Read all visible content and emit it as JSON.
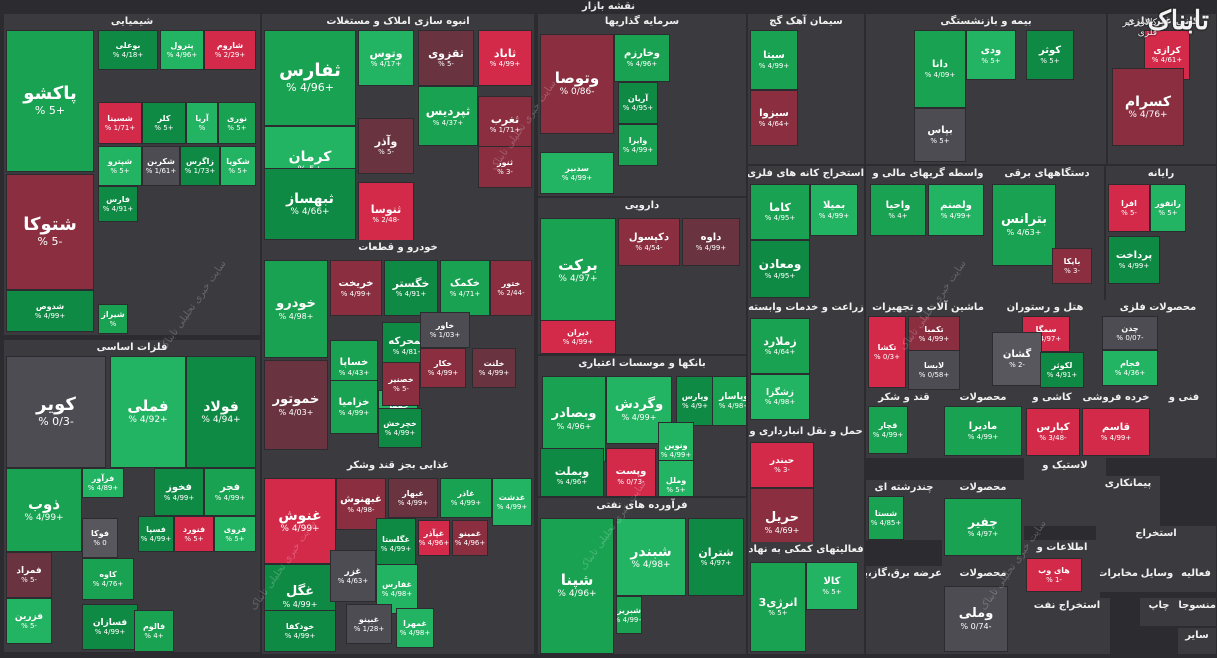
{
  "map_title": "نقشه بازار",
  "logo": {
    "main": "تابناک",
    "sub": "کالای غیر فلزی"
  },
  "watermark": "سایت خبری تحلیلی تابناک",
  "colors": {
    "up_strong": "#18a251",
    "up_light": "#23b463",
    "down_strong": "#d42a4a",
    "down_dark": "#8a2e40",
    "neutral": "#4c4c52"
  },
  "chart_data": {
    "type": "heatmap",
    "title": "نقشه بازار",
    "unit": "%",
    "sectors": [
      {
        "name": "شیمیایی",
        "tiles": [
          {
            "symbol": "پاکشو",
            "change": "+5 %",
            "dir": "up"
          },
          {
            "symbol": "شتوکا",
            "change": "-5 %",
            "dir": "down"
          },
          {
            "symbol": "شدوص",
            "change": "+4/99 %",
            "dir": "up"
          },
          {
            "symbol": "شاروم",
            "change": "+2/29 %",
            "dir": "down"
          },
          {
            "symbol": "پترول",
            "change": "+4/96 %",
            "dir": "up"
          },
          {
            "symbol": "بوعلی",
            "change": "+4/18 %",
            "dir": "up"
          },
          {
            "symbol": "نوری",
            "change": "+5 %",
            "dir": "up"
          },
          {
            "symbol": "آریا",
            "change": "%",
            "dir": "up"
          },
          {
            "symbol": "کلر",
            "change": "+5 %",
            "dir": "up"
          },
          {
            "symbol": "شسینا",
            "change": "+1/71 %",
            "dir": "down"
          },
          {
            "symbol": "شکویا",
            "change": "+5 %",
            "dir": "up"
          },
          {
            "symbol": "زاگرس",
            "change": "+1/73 %",
            "dir": "up"
          },
          {
            "symbol": "شکربن",
            "change": "+1/61 %",
            "dir": "n"
          },
          {
            "symbol": "شپترو",
            "change": "+5 %",
            "dir": "up"
          },
          {
            "symbol": "فارس",
            "change": "+4/91 %",
            "dir": "up"
          },
          {
            "symbol": "شیراز",
            "change": "%",
            "dir": "up"
          }
        ]
      },
      {
        "name": "فلزات اساسی",
        "tiles": [
          {
            "symbol": "کویر",
            "change": "-0/3 %",
            "dir": "n"
          },
          {
            "symbol": "فملی",
            "change": "+4/92 %",
            "dir": "up"
          },
          {
            "symbol": "فولاد",
            "change": "+4/94 %",
            "dir": "up"
          },
          {
            "symbol": "ذوب",
            "change": "+4/99 %",
            "dir": "up"
          },
          {
            "symbol": "فرآور",
            "change": "+4/89 %",
            "dir": "up"
          },
          {
            "symbol": "فخوز",
            "change": "+4/99 %",
            "dir": "up"
          },
          {
            "symbol": "فجر",
            "change": "+4/99 %",
            "dir": "up"
          },
          {
            "symbol": "فوکا",
            "change": "0 %",
            "dir": "n"
          },
          {
            "symbol": "فسپا",
            "change": "+4/99 %",
            "dir": "up"
          },
          {
            "symbol": "فنورد",
            "change": "+5 %",
            "dir": "down"
          },
          {
            "symbol": "فروی",
            "change": "+5 %",
            "dir": "up"
          },
          {
            "symbol": "فمراد",
            "change": "-5 %",
            "dir": "down"
          },
          {
            "symbol": "کاوه",
            "change": "+4/76 %",
            "dir": "up"
          },
          {
            "symbol": "فزرین",
            "change": "-5 %",
            "dir": "up"
          },
          {
            "symbol": "فسازان",
            "change": "+4/99 %",
            "dir": "up"
          },
          {
            "symbol": "فالوم",
            "change": "+4 %",
            "dir": "up"
          }
        ]
      },
      {
        "name": "انبوه سازی املاک و مستغلات",
        "tiles": [
          {
            "symbol": "ثفارس",
            "change": "+4/96 %",
            "dir": "up"
          },
          {
            "symbol": "وتوس",
            "change": "+4/17 %",
            "dir": "up"
          },
          {
            "symbol": "ثقزوی",
            "change": "-5 %",
            "dir": "down"
          },
          {
            "symbol": "ثاباد",
            "change": "+4/99 %",
            "dir": "down"
          },
          {
            "symbol": "کرمان",
            "change": "+5 %",
            "dir": "up"
          },
          {
            "symbol": "وآذر",
            "change": "-5 %",
            "dir": "down"
          },
          {
            "symbol": "ثپردیس",
            "change": "+4/37 %",
            "dir": "up"
          },
          {
            "symbol": "ثغرب",
            "change": "+1/71 %",
            "dir": "down"
          },
          {
            "symbol": "ثبهساز",
            "change": "+4/66 %",
            "dir": "up"
          },
          {
            "symbol": "ثنوسا",
            "change": "-2/48 %",
            "dir": "down"
          },
          {
            "symbol": "ثنور",
            "change": "-3 %",
            "dir": "down"
          }
        ]
      },
      {
        "name": "خودرو و قطعات",
        "tiles": [
          {
            "symbol": "خودرو",
            "change": "+4/98 %",
            "dir": "up"
          },
          {
            "symbol": "خریخت",
            "change": "+4/99 %",
            "dir": "down"
          },
          {
            "symbol": "خگستر",
            "change": "+4/91 %",
            "dir": "up"
          },
          {
            "symbol": "خکمک",
            "change": "+4/71 %",
            "dir": "up"
          },
          {
            "symbol": "ختور",
            "change": "-2/44 %",
            "dir": "down"
          },
          {
            "symbol": "خمحرکه",
            "change": "+4/81 %",
            "dir": "up"
          },
          {
            "symbol": "خاور",
            "change": "+1/03 %",
            "dir": "n"
          },
          {
            "symbol": "خکار",
            "change": "+4/99 %",
            "dir": "down"
          },
          {
            "symbol": "خلنت",
            "change": "+4/99 %",
            "dir": "down"
          },
          {
            "symbol": "خساپا",
            "change": "+4/43 %",
            "dir": "up"
          },
          {
            "symbol": "خمهر",
            "change": "+4/91 %",
            "dir": "up"
          },
          {
            "symbol": "خموتور",
            "change": "+4/03 %",
            "dir": "down"
          },
          {
            "symbol": "خزامیا",
            "change": "+4/99 %",
            "dir": "up"
          },
          {
            "symbol": "خصنیر",
            "change": "-5 %",
            "dir": "down"
          },
          {
            "symbol": "خچرخش",
            "change": "+4/99 %",
            "dir": "up"
          }
        ]
      },
      {
        "name": "غذایی بجز قند وشکر",
        "tiles": [
          {
            "symbol": "غنوش",
            "change": "+4/99 %",
            "dir": "down"
          },
          {
            "symbol": "غبهنوش",
            "change": "-4/98 %",
            "dir": "down"
          },
          {
            "symbol": "غبهار",
            "change": "+4/99 %",
            "dir": "down"
          },
          {
            "symbol": "غاذر",
            "change": "+4/99 %",
            "dir": "up"
          },
          {
            "symbol": "غدشت",
            "change": "+4/99 %",
            "dir": "up"
          },
          {
            "symbol": "غگلستا",
            "change": "+4/99 %",
            "dir": "up"
          },
          {
            "symbol": "غپآذر",
            "change": "+4/96 %",
            "dir": "down"
          },
          {
            "symbol": "غمینو",
            "change": "+4/96 %",
            "dir": "down"
          },
          {
            "symbol": "غگل",
            "change": "+4/99 %",
            "dir": "up"
          },
          {
            "symbol": "غزر",
            "change": "+4/63 %",
            "dir": "n"
          },
          {
            "symbol": "غفارس",
            "change": "+4/98 %",
            "dir": "up"
          },
          {
            "symbol": "خودکفا",
            "change": "+4/99 %",
            "dir": "up"
          },
          {
            "symbol": "غبینو",
            "change": "+1/28 %",
            "dir": "n"
          },
          {
            "symbol": "غمهرا",
            "change": "+4/98 %",
            "dir": "up"
          }
        ]
      },
      {
        "name": "سرمایه گذاریها",
        "tiles": [
          {
            "symbol": "وخارزم",
            "change": "+4/96 %",
            "dir": "up"
          },
          {
            "symbol": "وتوصا",
            "change": "-0/86 %",
            "dir": "down"
          },
          {
            "symbol": "آریان",
            "change": "+4/95 %",
            "dir": "up"
          },
          {
            "symbol": "وایرا",
            "change": "+4/99 %",
            "dir": "up"
          },
          {
            "symbol": "سدبیر",
            "change": "+4/99 %",
            "dir": "up"
          }
        ]
      },
      {
        "name": "دارویی",
        "tiles": [
          {
            "symbol": "برکت",
            "change": "+4/97 %",
            "dir": "up"
          },
          {
            "symbol": "دکپسول",
            "change": "-4/54 %",
            "dir": "down"
          },
          {
            "symbol": "داوه",
            "change": "+4/99 %",
            "dir": "down"
          },
          {
            "symbol": "دیران",
            "change": "+4/99 %",
            "dir": "down"
          }
        ]
      },
      {
        "name": "بانکها و موسسات اعتباری",
        "tiles": [
          {
            "symbol": "وبصادر",
            "change": "+4/96 %",
            "dir": "up"
          },
          {
            "symbol": "وگردش",
            "change": "+4/99 %",
            "dir": "up"
          },
          {
            "symbol": "وپارس",
            "change": "+4/9 %",
            "dir": "up"
          },
          {
            "symbol": "وپاسار",
            "change": "+4/98 %",
            "dir": "up"
          },
          {
            "symbol": "ونوین",
            "change": "+4/99 %",
            "dir": "up"
          },
          {
            "symbol": "وبملت",
            "change": "+4/96 %",
            "dir": "up"
          },
          {
            "symbol": "وپست",
            "change": "-0/73 %",
            "dir": "down"
          },
          {
            "symbol": "وملل",
            "change": "+5 %",
            "dir": "up"
          }
        ]
      },
      {
        "name": "فرآورده های نفتی",
        "tiles": [
          {
            "symbol": "شپنا",
            "change": "+4/96 %",
            "dir": "up"
          },
          {
            "symbol": "شبندر",
            "change": "+4/98 %",
            "dir": "up"
          },
          {
            "symbol": "شتران",
            "change": "+4/97 %",
            "dir": "up"
          },
          {
            "symbol": "شبریز",
            "change": "+4/99 %",
            "dir": "up"
          }
        ]
      },
      {
        "name": "سیمان آهک گچ",
        "tiles": [
          {
            "symbol": "سیتا",
            "change": "+4/99 %",
            "dir": "up"
          },
          {
            "symbol": "سبزوا",
            "change": "+4/64 %",
            "dir": "down"
          }
        ]
      },
      {
        "name": "بیمه و بازنشستگی",
        "tiles": [
          {
            "symbol": "دانا",
            "change": "+4/09 %",
            "dir": "up"
          },
          {
            "symbol": "ودی",
            "change": "+5 %",
            "dir": "up"
          },
          {
            "symbol": "کوثر",
            "change": "+5 %",
            "dir": "up"
          },
          {
            "symbol": "بپاس",
            "change": "+5 %",
            "dir": "n"
          }
        ]
      },
      {
        "name": "کانی غیر فلزی",
        "tiles": [
          {
            "symbol": "کرازی",
            "change": "+4/61 %",
            "dir": "down"
          },
          {
            "symbol": "کسرام",
            "change": "+4/76 %",
            "dir": "down"
          }
        ]
      },
      {
        "name": "استخراج کانه های فلزی",
        "tiles": [
          {
            "symbol": "کاما",
            "change": "+4/95 %",
            "dir": "up"
          },
          {
            "symbol": "بمیلا",
            "change": "+4/99 %",
            "dir": "up"
          },
          {
            "symbol": "ومعادن",
            "change": "+4/95 %",
            "dir": "up"
          }
        ]
      },
      {
        "name": "واسطه گریهای مالی و",
        "tiles": [
          {
            "symbol": "واحیا",
            "change": "+4 %",
            "dir": "up"
          },
          {
            "symbol": "ولصنم",
            "change": "+4/99 %",
            "dir": "up"
          }
        ]
      },
      {
        "name": "دستگاههای برقی",
        "tiles": [
          {
            "symbol": "بترانس",
            "change": "+4/63 %",
            "dir": "up"
          },
          {
            "symbol": "بایکا",
            "change": "-3 %",
            "dir": "down"
          }
        ]
      },
      {
        "name": "رایانه",
        "tiles": [
          {
            "symbol": "افرا",
            "change": "-5 %",
            "dir": "down"
          },
          {
            "symbol": "رانفور",
            "change": "+5 %",
            "dir": "up"
          },
          {
            "symbol": "پرداخت",
            "change": "+4/99 %",
            "dir": "up"
          }
        ]
      },
      {
        "name": "زراعت و خدمات وابسته",
        "tiles": [
          {
            "symbol": "زملارد",
            "change": "+4/64 %",
            "dir": "up"
          },
          {
            "symbol": "زشگزا",
            "change": "+4/98 %",
            "dir": "up"
          }
        ]
      },
      {
        "name": "ماشین آلات و تجهیزات",
        "tiles": [
          {
            "symbol": "تکشا",
            "change": "+0/3 %",
            "dir": "down"
          },
          {
            "symbol": "تکمبا",
            "change": "+4/99 %",
            "dir": "down"
          },
          {
            "symbol": "لابسا",
            "change": "+0/58 %",
            "dir": "n"
          }
        ]
      },
      {
        "name": "هتل و رستوران",
        "tiles": [
          {
            "symbol": "سمگا",
            "change": "+4/97 %",
            "dir": "down"
          },
          {
            "symbol": "گشان",
            "change": "-2 %",
            "dir": "n"
          },
          {
            "symbol": "لکوثر",
            "change": "+4/91 %",
            "dir": "up"
          }
        ]
      },
      {
        "name": "محصولات فلزی",
        "tiles": [
          {
            "symbol": "چدن",
            "change": "-0/07 %",
            "dir": "n"
          },
          {
            "symbol": "فجام",
            "change": "+4/36 %",
            "dir": "up"
          }
        ]
      },
      {
        "name": "حمل و نقل انبارداری و",
        "tiles": [
          {
            "symbol": "حبندر",
            "change": "-3 %",
            "dir": "down"
          },
          {
            "symbol": "حریل",
            "change": "+4/69 %",
            "dir": "down"
          }
        ]
      },
      {
        "name": "قند و شکر",
        "tiles": [
          {
            "symbol": "قچار",
            "change": "+4/99 %",
            "dir": "up"
          }
        ]
      },
      {
        "name": "محصولات",
        "tiles": [
          {
            "symbol": "مادیرا",
            "change": "+4/99 %",
            "dir": "up"
          }
        ]
      },
      {
        "name": "کاشی و",
        "tiles": [
          {
            "symbol": "کپارس",
            "change": "-3/48 %",
            "dir": "down"
          }
        ]
      },
      {
        "name": "خرده فروشی",
        "tiles": [
          {
            "symbol": "قاسم",
            "change": "+4/99 %",
            "dir": "down"
          }
        ]
      },
      {
        "name": "فنی و",
        "tiles": []
      },
      {
        "name": "چندرشته ای",
        "tiles": [
          {
            "symbol": "شستا",
            "change": "+4/85 %",
            "dir": "up"
          }
        ]
      },
      {
        "name": "لاستیک و",
        "tiles": []
      },
      {
        "name": "پیمانکاری",
        "tiles": []
      },
      {
        "name": "محصولات ",
        "tiles": [
          {
            "symbol": "چفیر",
            "change": "+4/97 %",
            "dir": "up"
          }
        ]
      },
      {
        "name": "استخراج",
        "tiles": []
      },
      {
        "name": "فعالیتهای کمکی به نهاد",
        "tiles": [
          {
            "symbol": "انرژی3",
            "change": "+5 %",
            "dir": "up"
          },
          {
            "symbol": "کالا",
            "change": "+5 %",
            "dir": "up"
          }
        ]
      },
      {
        "name": "عرضه برق،گاز،بخار",
        "tiles": []
      },
      {
        "name": "محصولات  ",
        "tiles": [
          {
            "symbol": "وملی",
            "change": "-0/74 %",
            "dir": "n"
          }
        ]
      },
      {
        "name": "اطلاعات و",
        "tiles": [
          {
            "symbol": "های وب",
            "change": "-1 %",
            "dir": "down"
          }
        ]
      },
      {
        "name": "استخراج نفت",
        "tiles": []
      },
      {
        "name": "فعالیه",
        "tiles": []
      },
      {
        "name": "وسایل",
        "tiles": []
      },
      {
        "name": "مخابرات",
        "tiles": []
      },
      {
        "name": "منسوجات",
        "tiles": []
      },
      {
        "name": "چاپ",
        "tiles": []
      },
      {
        "name": "سایر",
        "tiles": []
      },
      {
        "name": "سایر ",
        "tiles": []
      }
    ]
  }
}
